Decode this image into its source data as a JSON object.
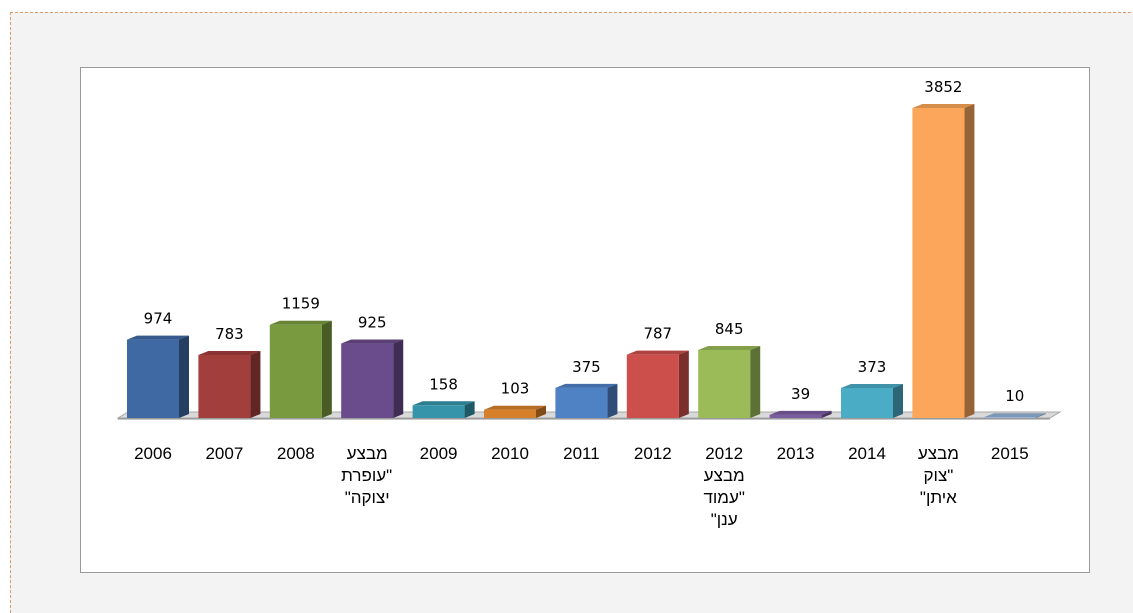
{
  "chart_data": {
    "type": "bar",
    "categories": [
      "2006",
      "2007",
      "2008",
      "מבצע \"עופרת יצוקה\"",
      "2009",
      "2010",
      "2011",
      "2012",
      "2012 מבצע \"עמוד ענן\"",
      "2013",
      "2014",
      "מבצע \"צוק איתן\"",
      "2015"
    ],
    "values": [
      974,
      783,
      1159,
      925,
      158,
      103,
      375,
      787,
      845,
      39,
      373,
      3852,
      10
    ],
    "colors": [
      "#3f69a3",
      "#a23e3b",
      "#7a9a3f",
      "#6a4c8c",
      "#3594a9",
      "#d6802b",
      "#4f81c5",
      "#cd4f4c",
      "#9bbb59",
      "#7a5ca0",
      "#4bacc6",
      "#fba65a",
      "#95b3d7"
    ]
  }
}
